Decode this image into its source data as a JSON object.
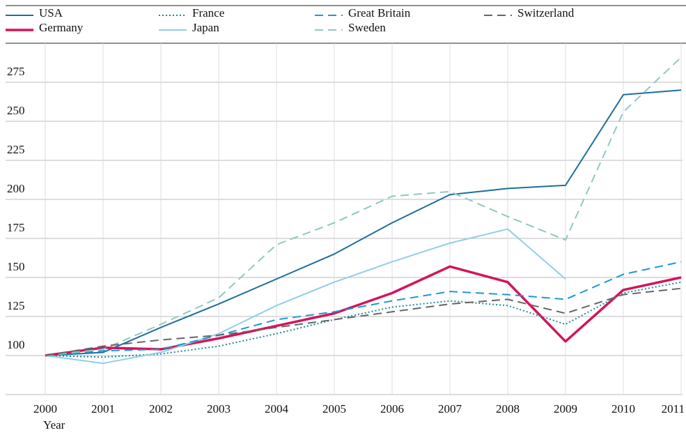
{
  "chart_data": {
    "type": "line",
    "x_label": "Year",
    "x": [
      2000,
      2001,
      2002,
      2003,
      2004,
      2005,
      2006,
      2007,
      2008,
      2009,
      2010,
      2011
    ],
    "xlim": [
      2000,
      2011
    ],
    "xticks": [
      2000,
      2001,
      2002,
      2003,
      2004,
      2005,
      2006,
      2007,
      2008,
      2009,
      2010,
      2011
    ],
    "ylim": [
      75,
      300
    ],
    "yticks": [
      100,
      125,
      150,
      175,
      200,
      225,
      250,
      275
    ],
    "grid": true,
    "legend": "top",
    "series": [
      {
        "name": "USA",
        "color": "#1f6e9c",
        "dash": "solid",
        "values": [
          100,
          102,
          118,
          133,
          149,
          165,
          185,
          203,
          207,
          209,
          267,
          270
        ]
      },
      {
        "name": "Germany",
        "color": "#d4145a",
        "dash": "solid",
        "bold": true,
        "values": [
          100,
          105,
          104,
          111,
          119,
          127,
          140,
          157,
          147,
          109,
          142,
          150
        ]
      },
      {
        "name": "France",
        "color": "#1a8a9a",
        "dash": "dotted",
        "values": [
          100,
          99,
          101,
          106,
          114,
          123,
          131,
          135,
          132,
          120,
          140,
          147
        ]
      },
      {
        "name": "Japan",
        "color": "#8ecfe8",
        "dash": "solid",
        "values": [
          100,
          95,
          102,
          114,
          132,
          147,
          160,
          172,
          181,
          149,
          null,
          null
        ]
      },
      {
        "name": "Great Britain",
        "color": "#1a9ad6",
        "dash": "dashed",
        "values": [
          100,
          103,
          104,
          113,
          123,
          128,
          135,
          141,
          139,
          136,
          152,
          160
        ]
      },
      {
        "name": "Sweden",
        "color": "#8cc9c3",
        "dash": "dashed",
        "values": [
          100,
          104,
          120,
          137,
          171,
          185,
          202,
          205,
          189,
          174,
          256,
          291
        ]
      },
      {
        "name": "Switzerland",
        "color": "#666666",
        "dash": "dashed",
        "values": [
          100,
          106,
          110,
          113,
          118,
          123,
          128,
          133,
          136,
          127,
          139,
          143
        ]
      }
    ]
  }
}
